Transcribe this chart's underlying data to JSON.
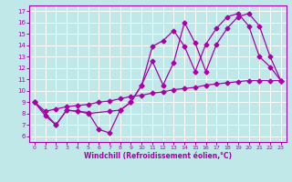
{
  "xlabel": "Windchill (Refroidissement éolien,°C)",
  "xlim": [
    -0.5,
    23.5
  ],
  "ylim": [
    5.5,
    17.5
  ],
  "yticks": [
    6,
    7,
    8,
    9,
    10,
    11,
    12,
    13,
    14,
    15,
    16,
    17
  ],
  "xticks": [
    0,
    1,
    2,
    3,
    4,
    5,
    6,
    7,
    8,
    9,
    10,
    11,
    12,
    13,
    14,
    15,
    16,
    17,
    18,
    19,
    20,
    21,
    22,
    23
  ],
  "bg_color": "#c0e8e8",
  "line_color": "#aa00aa",
  "grid_color": "#ffffff",
  "line1_x": [
    0,
    1,
    2,
    3,
    4,
    5,
    6,
    7,
    8,
    9,
    10,
    11,
    12,
    13,
    14,
    15,
    16,
    17,
    18,
    19,
    20,
    21,
    22,
    23
  ],
  "line1_y": [
    9.0,
    7.8,
    7.0,
    8.3,
    8.2,
    8.1,
    6.6,
    6.3,
    8.3,
    9.0,
    10.5,
    13.9,
    14.4,
    15.3,
    13.9,
    11.7,
    14.1,
    15.5,
    16.5,
    16.8,
    15.7,
    13.0,
    12.1,
    10.9
  ],
  "line2_x": [
    0,
    2,
    3,
    4,
    5,
    7,
    8,
    9,
    10,
    11,
    12,
    13,
    14,
    15,
    16,
    17,
    18,
    19,
    20,
    21,
    22,
    23
  ],
  "line2_y": [
    9.0,
    7.0,
    8.3,
    8.2,
    8.0,
    8.2,
    8.3,
    9.0,
    10.5,
    12.6,
    10.5,
    12.5,
    16.0,
    14.2,
    11.7,
    14.1,
    15.5,
    16.5,
    16.8,
    15.7,
    13.0,
    10.9
  ],
  "line3_x": [
    0,
    1,
    2,
    3,
    4,
    5,
    6,
    7,
    8,
    9,
    10,
    11,
    12,
    13,
    14,
    15,
    16,
    17,
    18,
    19,
    20,
    21,
    22,
    23
  ],
  "line3_y": [
    9.0,
    8.2,
    8.4,
    8.6,
    8.7,
    8.8,
    9.0,
    9.1,
    9.3,
    9.5,
    9.6,
    9.8,
    9.9,
    10.1,
    10.2,
    10.3,
    10.5,
    10.6,
    10.7,
    10.8,
    10.9,
    10.9,
    10.9,
    10.9
  ]
}
